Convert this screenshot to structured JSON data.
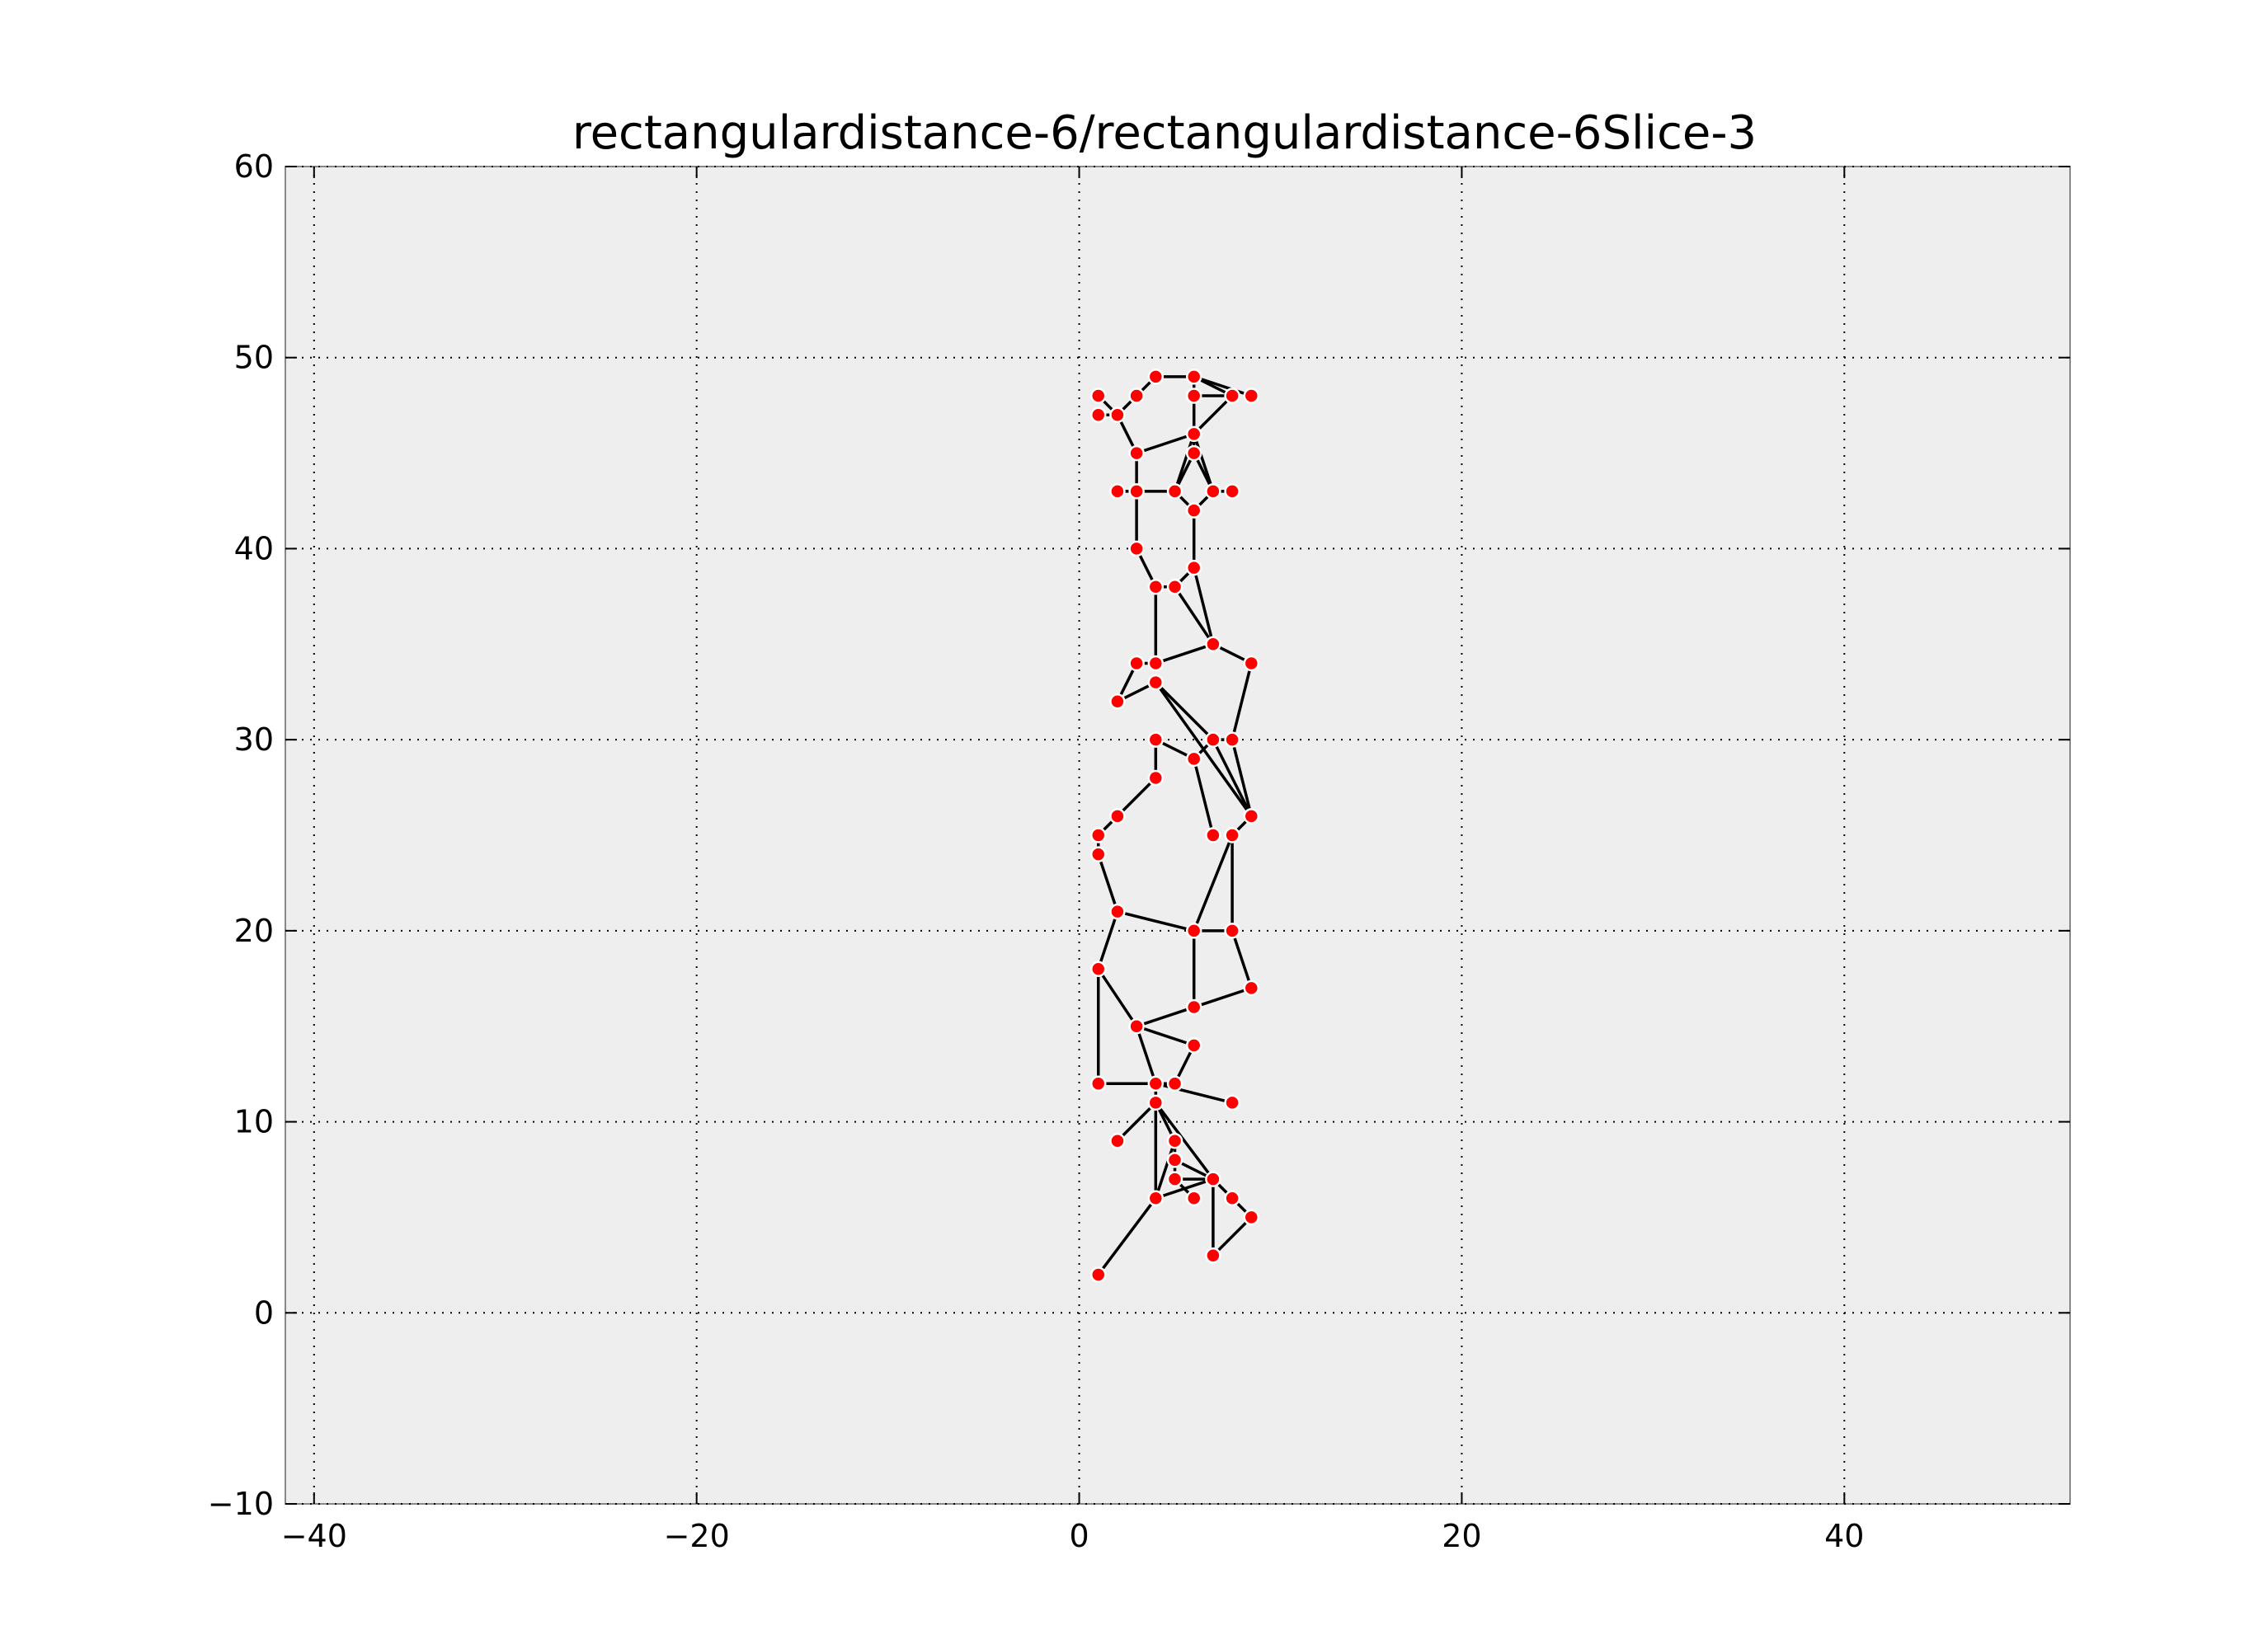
{
  "chart_data": {
    "type": "scatter",
    "title": "rectangulardistance-6/rectangulardistance-6Slice-3",
    "xlabel": "",
    "ylabel": "",
    "xlim": [
      -41.5,
      51.8
    ],
    "ylim": [
      -10,
      60
    ],
    "xticks": [
      -40,
      -20,
      0,
      20,
      40
    ],
    "xtick_labels": [
      "−40",
      "−20",
      "0",
      "20",
      "40"
    ],
    "yticks": [
      -10,
      0,
      10,
      20,
      30,
      40,
      50,
      60
    ],
    "ytick_labels": [
      "−10",
      "0",
      "10",
      "20",
      "30",
      "40",
      "50",
      "60"
    ],
    "grid": true,
    "point_color": "#ff0000",
    "edge_color": "#000000",
    "background": "#eeeeee",
    "points": [
      [
        1,
        48
      ],
      [
        1,
        47
      ],
      [
        2,
        47
      ],
      [
        3,
        48
      ],
      [
        4,
        49
      ],
      [
        6,
        49
      ],
      [
        6,
        48
      ],
      [
        8,
        48
      ],
      [
        9,
        48
      ],
      [
        3,
        45
      ],
      [
        6,
        46
      ],
      [
        6,
        45
      ],
      [
        2,
        43
      ],
      [
        3,
        43
      ],
      [
        5,
        43
      ],
      [
        7,
        43
      ],
      [
        8,
        43
      ],
      [
        6,
        42
      ],
      [
        3,
        40
      ],
      [
        6,
        39
      ],
      [
        4,
        38
      ],
      [
        5,
        38
      ],
      [
        7,
        35
      ],
      [
        9,
        34
      ],
      [
        3,
        34
      ],
      [
        4,
        34
      ],
      [
        4,
        33
      ],
      [
        2,
        32
      ],
      [
        4,
        30
      ],
      [
        7,
        30
      ],
      [
        8,
        30
      ],
      [
        6,
        29
      ],
      [
        4,
        28
      ],
      [
        2,
        26
      ],
      [
        9,
        26
      ],
      [
        1,
        25
      ],
      [
        7,
        25
      ],
      [
        8,
        25
      ],
      [
        1,
        24
      ],
      [
        2,
        21
      ],
      [
        6,
        20
      ],
      [
        8,
        20
      ],
      [
        1,
        18
      ],
      [
        9,
        17
      ],
      [
        6,
        16
      ],
      [
        3,
        15
      ],
      [
        6,
        14
      ],
      [
        1,
        12
      ],
      [
        4,
        12
      ],
      [
        5,
        12
      ],
      [
        4,
        11
      ],
      [
        8,
        11
      ],
      [
        2,
        9
      ],
      [
        5,
        9
      ],
      [
        5,
        8
      ],
      [
        5,
        7
      ],
      [
        7,
        7
      ],
      [
        4,
        6
      ],
      [
        6,
        6
      ],
      [
        8,
        6
      ],
      [
        9,
        5
      ],
      [
        7,
        3
      ],
      [
        1,
        2
      ]
    ],
    "edges": [
      [
        [
          1,
          48
        ],
        [
          2,
          47
        ]
      ],
      [
        [
          1,
          47
        ],
        [
          2,
          47
        ]
      ],
      [
        [
          2,
          47
        ],
        [
          3,
          48
        ]
      ],
      [
        [
          3,
          48
        ],
        [
          4,
          49
        ]
      ],
      [
        [
          4,
          49
        ],
        [
          6,
          49
        ]
      ],
      [
        [
          6,
          49
        ],
        [
          6,
          48
        ]
      ],
      [
        [
          6,
          49
        ],
        [
          8,
          48
        ]
      ],
      [
        [
          6,
          48
        ],
        [
          8,
          48
        ]
      ],
      [
        [
          6,
          49
        ],
        [
          9,
          48
        ]
      ],
      [
        [
          8,
          48
        ],
        [
          6,
          46
        ]
      ],
      [
        [
          2,
          47
        ],
        [
          3,
          45
        ]
      ],
      [
        [
          3,
          45
        ],
        [
          6,
          46
        ]
      ],
      [
        [
          6,
          48
        ],
        [
          6,
          46
        ]
      ],
      [
        [
          6,
          46
        ],
        [
          6,
          45
        ]
      ],
      [
        [
          6,
          46
        ],
        [
          5,
          43
        ]
      ],
      [
        [
          6,
          46
        ],
        [
          7,
          43
        ]
      ],
      [
        [
          6,
          45
        ],
        [
          5,
          43
        ]
      ],
      [
        [
          6,
          45
        ],
        [
          7,
          43
        ]
      ],
      [
        [
          3,
          45
        ],
        [
          3,
          43
        ]
      ],
      [
        [
          2,
          43
        ],
        [
          3,
          43
        ]
      ],
      [
        [
          3,
          43
        ],
        [
          5,
          43
        ]
      ],
      [
        [
          5,
          43
        ],
        [
          6,
          42
        ]
      ],
      [
        [
          7,
          43
        ],
        [
          6,
          42
        ]
      ],
      [
        [
          7,
          43
        ],
        [
          8,
          43
        ]
      ],
      [
        [
          6,
          42
        ],
        [
          6,
          39
        ]
      ],
      [
        [
          3,
          43
        ],
        [
          3,
          40
        ]
      ],
      [
        [
          3,
          40
        ],
        [
          4,
          38
        ]
      ],
      [
        [
          4,
          38
        ],
        [
          5,
          38
        ]
      ],
      [
        [
          5,
          38
        ],
        [
          6,
          39
        ]
      ],
      [
        [
          4,
          38
        ],
        [
          4,
          34
        ]
      ],
      [
        [
          6,
          39
        ],
        [
          7,
          35
        ]
      ],
      [
        [
          5,
          38
        ],
        [
          7,
          35
        ]
      ],
      [
        [
          4,
          34
        ],
        [
          7,
          35
        ]
      ],
      [
        [
          7,
          35
        ],
        [
          9,
          34
        ]
      ],
      [
        [
          3,
          34
        ],
        [
          4,
          34
        ]
      ],
      [
        [
          3,
          34
        ],
        [
          2,
          32
        ]
      ],
      [
        [
          2,
          32
        ],
        [
          4,
          33
        ]
      ],
      [
        [
          4,
          33
        ],
        [
          7,
          30
        ]
      ],
      [
        [
          9,
          34
        ],
        [
          8,
          30
        ]
      ],
      [
        [
          4,
          33
        ],
        [
          9,
          26
        ]
      ],
      [
        [
          4,
          30
        ],
        [
          6,
          29
        ]
      ],
      [
        [
          4,
          30
        ],
        [
          4,
          28
        ]
      ],
      [
        [
          6,
          29
        ],
        [
          7,
          30
        ]
      ],
      [
        [
          7,
          30
        ],
        [
          8,
          30
        ]
      ],
      [
        [
          7,
          30
        ],
        [
          9,
          26
        ]
      ],
      [
        [
          8,
          30
        ],
        [
          9,
          26
        ]
      ],
      [
        [
          6,
          29
        ],
        [
          7,
          25
        ]
      ],
      [
        [
          4,
          28
        ],
        [
          2,
          26
        ]
      ],
      [
        [
          2,
          26
        ],
        [
          1,
          25
        ]
      ],
      [
        [
          1,
          25
        ],
        [
          1,
          24
        ]
      ],
      [
        [
          9,
          26
        ],
        [
          8,
          25
        ]
      ],
      [
        [
          1,
          24
        ],
        [
          2,
          21
        ]
      ],
      [
        [
          2,
          21
        ],
        [
          6,
          20
        ]
      ],
      [
        [
          8,
          25
        ],
        [
          6,
          20
        ]
      ],
      [
        [
          8,
          25
        ],
        [
          8,
          20
        ]
      ],
      [
        [
          6,
          20
        ],
        [
          8,
          20
        ]
      ],
      [
        [
          8,
          20
        ],
        [
          9,
          17
        ]
      ],
      [
        [
          2,
          21
        ],
        [
          1,
          18
        ]
      ],
      [
        [
          6,
          20
        ],
        [
          6,
          16
        ]
      ],
      [
        [
          9,
          17
        ],
        [
          6,
          16
        ]
      ],
      [
        [
          6,
          16
        ],
        [
          3,
          15
        ]
      ],
      [
        [
          1,
          18
        ],
        [
          3,
          15
        ]
      ],
      [
        [
          3,
          15
        ],
        [
          6,
          14
        ]
      ],
      [
        [
          1,
          18
        ],
        [
          1,
          12
        ]
      ],
      [
        [
          3,
          15
        ],
        [
          4,
          12
        ]
      ],
      [
        [
          6,
          14
        ],
        [
          5,
          12
        ]
      ],
      [
        [
          1,
          12
        ],
        [
          4,
          12
        ]
      ],
      [
        [
          4,
          12
        ],
        [
          5,
          12
        ]
      ],
      [
        [
          4,
          12
        ],
        [
          4,
          11
        ]
      ],
      [
        [
          4,
          12
        ],
        [
          8,
          11
        ]
      ],
      [
        [
          4,
          11
        ],
        [
          2,
          9
        ]
      ],
      [
        [
          4,
          11
        ],
        [
          5,
          9
        ]
      ],
      [
        [
          4,
          11
        ],
        [
          7,
          7
        ]
      ],
      [
        [
          4,
          11
        ],
        [
          4,
          6
        ]
      ],
      [
        [
          5,
          9
        ],
        [
          5,
          8
        ]
      ],
      [
        [
          5,
          8
        ],
        [
          5,
          7
        ]
      ],
      [
        [
          5,
          8
        ],
        [
          7,
          7
        ]
      ],
      [
        [
          4,
          6
        ],
        [
          5,
          9
        ]
      ],
      [
        [
          4,
          6
        ],
        [
          7,
          7
        ]
      ],
      [
        [
          5,
          7
        ],
        [
          6,
          6
        ]
      ],
      [
        [
          7,
          7
        ],
        [
          8,
          6
        ]
      ],
      [
        [
          7,
          7
        ],
        [
          7,
          3
        ]
      ],
      [
        [
          8,
          6
        ],
        [
          9,
          5
        ]
      ],
      [
        [
          9,
          5
        ],
        [
          7,
          3
        ]
      ],
      [
        [
          4,
          6
        ],
        [
          1,
          2
        ]
      ],
      [
        [
          5,
          7
        ],
        [
          7,
          7
        ]
      ]
    ]
  }
}
